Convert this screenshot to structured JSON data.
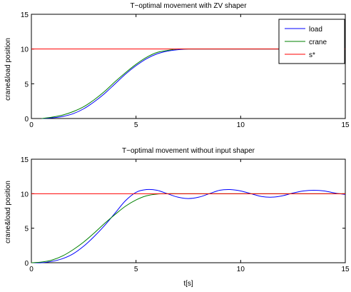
{
  "chart_data": [
    {
      "type": "line",
      "title": "T−optimal movement with ZV shaper",
      "xlabel": "",
      "ylabel": "crane&load position",
      "xlim": [
        0,
        15
      ],
      "ylim": [
        0,
        15
      ],
      "xticks": [
        0,
        5,
        10,
        15
      ],
      "yticks": [
        0,
        5,
        10,
        15
      ],
      "xtick_labels": [
        "0",
        "5",
        "10",
        "15"
      ],
      "ytick_labels": [
        "0",
        "5",
        "10",
        "15"
      ],
      "grid": false,
      "legend": {
        "placement": "top-right",
        "entries": [
          "load",
          "crane",
          "s*"
        ]
      },
      "series": [
        {
          "name": "load",
          "color": "#0000ff",
          "x": [
            0.5,
            1.0,
            1.5,
            2.0,
            2.5,
            3.0,
            3.5,
            4.0,
            4.5,
            5.0,
            5.5,
            6.0,
            6.5,
            7.0,
            7.5,
            8.0,
            9.0,
            10.0,
            12.0,
            15.0
          ],
          "y": [
            0.0,
            0.1,
            0.3,
            0.7,
            1.4,
            2.4,
            3.6,
            5.0,
            6.4,
            7.6,
            8.6,
            9.3,
            9.7,
            9.9,
            10.0,
            10.0,
            10.0,
            10.0,
            10.0,
            10.0
          ]
        },
        {
          "name": "crane",
          "color": "#008000",
          "x": [
            0.5,
            1.0,
            1.5,
            2.0,
            2.5,
            3.0,
            3.5,
            4.0,
            4.5,
            5.0,
            5.5,
            6.0,
            6.5,
            7.0,
            7.5,
            8.0,
            9.0,
            10.0,
            12.0,
            15.0
          ],
          "y": [
            0.0,
            0.2,
            0.5,
            1.0,
            1.7,
            2.7,
            3.9,
            5.3,
            6.6,
            7.8,
            8.8,
            9.5,
            9.8,
            10.0,
            10.0,
            10.0,
            10.0,
            10.0,
            10.0,
            10.0
          ]
        },
        {
          "name": "s*",
          "color": "#ff0000",
          "x": [
            0,
            15
          ],
          "y": [
            10,
            10
          ]
        }
      ]
    },
    {
      "type": "line",
      "title": "T−optimal movement without input shaper",
      "xlabel": "t[s]",
      "ylabel": "crane&load position",
      "xlim": [
        0,
        15
      ],
      "ylim": [
        0,
        15
      ],
      "xticks": [
        0,
        5,
        10,
        15
      ],
      "yticks": [
        0,
        5,
        10,
        15
      ],
      "xtick_labels": [
        "0",
        "5",
        "10",
        "15"
      ],
      "ytick_labels": [
        "0",
        "5",
        "10",
        "15"
      ],
      "grid": false,
      "series": [
        {
          "name": "",
          "color": "#0000ff",
          "x": [
            0.0,
            0.5,
            1.0,
            1.5,
            2.0,
            2.5,
            3.0,
            3.5,
            4.0,
            4.5,
            5.0,
            5.5,
            6.0,
            6.5,
            7.0,
            7.5,
            8.0,
            8.5,
            9.0,
            9.5,
            10.0,
            10.5,
            11.0,
            11.5,
            12.0,
            12.5,
            13.0,
            13.5,
            14.0,
            14.5,
            15.0
          ],
          "y": [
            0.0,
            0.0,
            0.2,
            0.6,
            1.3,
            2.4,
            3.8,
            5.4,
            7.2,
            9.0,
            10.2,
            10.6,
            10.5,
            10.0,
            9.5,
            9.3,
            9.5,
            10.0,
            10.5,
            10.6,
            10.4,
            10.0,
            9.6,
            9.5,
            9.7,
            10.1,
            10.4,
            10.5,
            10.4,
            10.1,
            9.9
          ]
        },
        {
          "name": "",
          "color": "#008000",
          "x": [
            0.0,
            0.5,
            1.0,
            1.5,
            2.0,
            2.5,
            3.0,
            3.5,
            4.0,
            4.5,
            5.0,
            5.5,
            6.0,
            6.5,
            7.0,
            8.0,
            10.0,
            15.0
          ],
          "y": [
            0.0,
            0.1,
            0.4,
            1.0,
            1.9,
            3.0,
            4.3,
            5.7,
            7.0,
            8.2,
            9.1,
            9.7,
            9.95,
            10.0,
            10.0,
            10.0,
            10.0,
            10.0
          ]
        },
        {
          "name": "",
          "color": "#ff0000",
          "x": [
            0,
            15
          ],
          "y": [
            10,
            10
          ]
        }
      ]
    }
  ]
}
